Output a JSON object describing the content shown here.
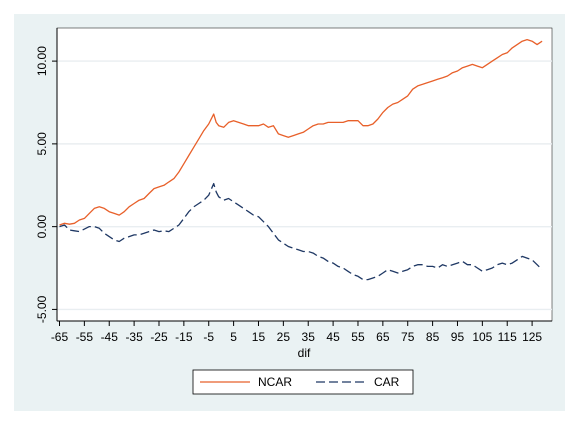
{
  "chart_data": {
    "type": "line",
    "title": "",
    "xlabel": "dif",
    "ylabel": "",
    "xlim": [
      -66,
      133
    ],
    "ylim": [
      -5.7,
      12.0
    ],
    "grid": "horizontal",
    "legend_position": "bottom",
    "x_ticks": [
      -65,
      -55,
      -45,
      -35,
      -25,
      -15,
      -5,
      5,
      15,
      25,
      35,
      45,
      55,
      65,
      75,
      85,
      95,
      105,
      115,
      125
    ],
    "x_tick_labels": [
      "-65",
      "-55",
      "-45",
      "-35",
      "-25",
      "-15",
      "-5",
      "5",
      "15",
      "25",
      "35",
      "45",
      "55",
      "65",
      "75",
      "85",
      "95",
      "105",
      "115",
      "125"
    ],
    "y_ticks": [
      -5,
      0,
      5,
      10
    ],
    "y_tick_labels": [
      "-5.00",
      "0.00",
      "5.00",
      "10.00"
    ],
    "series": [
      {
        "name": "NCAR",
        "color": "#e8602a",
        "dash": "solid",
        "x": [
          -65,
          -63,
          -61,
          -59,
          -57,
          -55,
          -53,
          -51,
          -49,
          -47,
          -45,
          -43,
          -41,
          -39,
          -37,
          -35,
          -33,
          -31,
          -29,
          -27,
          -25,
          -23,
          -21,
          -19,
          -17,
          -15,
          -13,
          -11,
          -9,
          -7,
          -5,
          -3,
          -2,
          -1,
          1,
          3,
          5,
          7,
          9,
          11,
          13,
          15,
          17,
          19,
          21,
          23,
          25,
          27,
          29,
          31,
          33,
          35,
          37,
          39,
          41,
          43,
          45,
          47,
          49,
          51,
          53,
          55,
          57,
          59,
          61,
          63,
          65,
          67,
          69,
          71,
          73,
          75,
          77,
          79,
          81,
          83,
          85,
          87,
          89,
          91,
          93,
          95,
          97,
          99,
          101,
          103,
          105,
          107,
          109,
          111,
          113,
          115,
          117,
          119,
          121,
          123,
          125,
          127,
          129
        ],
        "values": [
          0.1,
          0.2,
          0.15,
          0.2,
          0.4,
          0.5,
          0.8,
          1.1,
          1.2,
          1.1,
          0.9,
          0.8,
          0.7,
          0.9,
          1.2,
          1.4,
          1.6,
          1.7,
          2.0,
          2.3,
          2.4,
          2.5,
          2.7,
          2.9,
          3.3,
          3.8,
          4.3,
          4.8,
          5.3,
          5.8,
          6.2,
          6.8,
          6.3,
          6.1,
          6.0,
          6.3,
          6.4,
          6.3,
          6.2,
          6.1,
          6.1,
          6.1,
          6.2,
          6.0,
          6.1,
          5.6,
          5.5,
          5.4,
          5.5,
          5.6,
          5.7,
          5.9,
          6.1,
          6.2,
          6.2,
          6.3,
          6.3,
          6.3,
          6.3,
          6.4,
          6.4,
          6.4,
          6.1,
          6.1,
          6.2,
          6.5,
          6.9,
          7.2,
          7.4,
          7.5,
          7.7,
          7.9,
          8.3,
          8.5,
          8.6,
          8.7,
          8.8,
          8.9,
          9.0,
          9.1,
          9.3,
          9.4,
          9.6,
          9.7,
          9.8,
          9.7,
          9.6,
          9.8,
          10.0,
          10.2,
          10.4,
          10.5,
          10.8,
          11.0,
          11.2,
          11.3,
          11.2,
          11.0,
          11.2
        ]
      },
      {
        "name": "CAR",
        "color": "#1f3864",
        "dash": "long-dash",
        "x": [
          -65,
          -63,
          -61,
          -59,
          -57,
          -55,
          -53,
          -51,
          -49,
          -47,
          -45,
          -43,
          -41,
          -39,
          -37,
          -35,
          -33,
          -31,
          -29,
          -27,
          -25,
          -23,
          -21,
          -19,
          -17,
          -15,
          -13,
          -11,
          -9,
          -7,
          -5,
          -3,
          -2,
          -1,
          1,
          3,
          5,
          7,
          9,
          11,
          13,
          15,
          17,
          19,
          21,
          23,
          25,
          27,
          29,
          31,
          33,
          35,
          37,
          39,
          41,
          43,
          45,
          47,
          49,
          51,
          53,
          55,
          57,
          59,
          61,
          63,
          65,
          67,
          69,
          71,
          73,
          75,
          77,
          79,
          81,
          83,
          85,
          87,
          89,
          91,
          93,
          95,
          97,
          99,
          101,
          103,
          105,
          107,
          109,
          111,
          113,
          115,
          117,
          119,
          121,
          123,
          125,
          127,
          129
        ],
        "values": [
          0.0,
          0.1,
          -0.2,
          -0.25,
          -0.3,
          -0.15,
          0.0,
          0.0,
          -0.1,
          -0.4,
          -0.6,
          -0.8,
          -0.9,
          -0.7,
          -0.6,
          -0.5,
          -0.5,
          -0.4,
          -0.3,
          -0.2,
          -0.3,
          -0.25,
          -0.3,
          -0.1,
          0.1,
          0.5,
          0.9,
          1.2,
          1.4,
          1.6,
          1.9,
          2.6,
          2.1,
          1.8,
          1.6,
          1.7,
          1.5,
          1.3,
          1.1,
          0.9,
          0.7,
          0.6,
          0.3,
          0.0,
          -0.4,
          -0.8,
          -1.0,
          -1.2,
          -1.3,
          -1.4,
          -1.5,
          -1.5,
          -1.6,
          -1.8,
          -1.9,
          -2.1,
          -2.2,
          -2.4,
          -2.5,
          -2.7,
          -2.9,
          -3.0,
          -3.2,
          -3.2,
          -3.1,
          -3.0,
          -2.8,
          -2.6,
          -2.7,
          -2.8,
          -2.7,
          -2.6,
          -2.4,
          -2.3,
          -2.3,
          -2.4,
          -2.4,
          -2.5,
          -2.3,
          -2.4,
          -2.3,
          -2.2,
          -2.1,
          -2.3,
          -2.3,
          -2.5,
          -2.7,
          -2.6,
          -2.5,
          -2.3,
          -2.2,
          -2.3,
          -2.2,
          -2.0,
          -1.8,
          -1.9,
          -2.0,
          -2.3,
          -2.6
        ]
      }
    ]
  }
}
